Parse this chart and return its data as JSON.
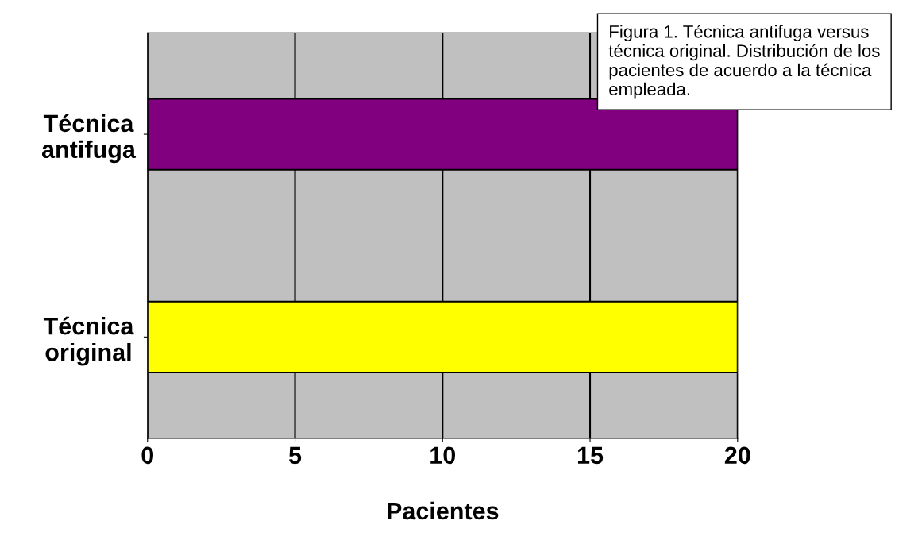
{
  "chart_data": {
    "type": "bar",
    "orientation": "horizontal",
    "categories": [
      "Técnica antifuga",
      "Técnica original"
    ],
    "series": [
      {
        "color": "#800080",
        "values": [
          20,
          null
        ]
      },
      {
        "color": "#ffff00",
        "values": [
          null,
          20
        ]
      }
    ],
    "xlim": [
      0,
      20
    ],
    "xticks": [
      0,
      5,
      10,
      15,
      20
    ],
    "xlabel": "Pacientes",
    "grid": "x",
    "annotations": [
      "Figura 1. Técnica antifuga versus técnica original. Distribución de los pacientes de acuerdo a la técnica empleada."
    ]
  }
}
